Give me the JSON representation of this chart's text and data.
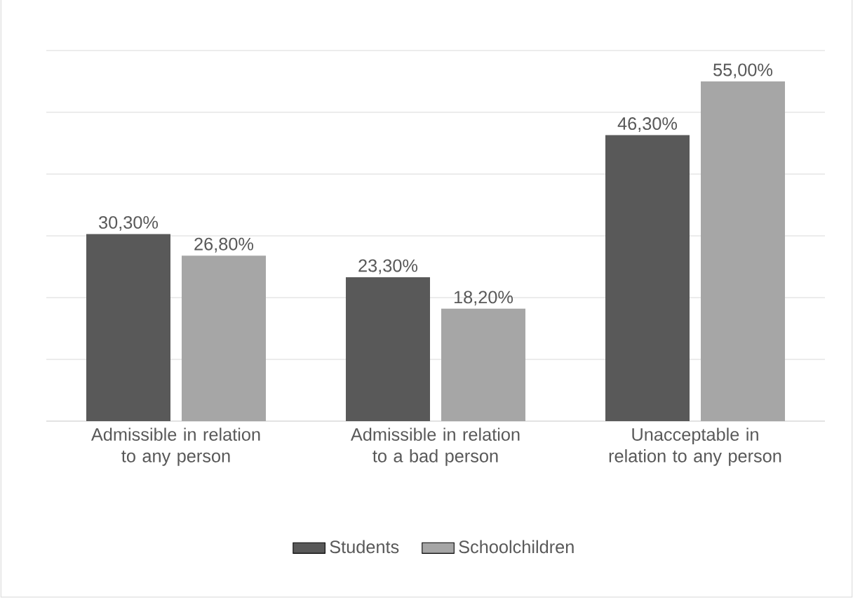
{
  "chart_data": {
    "type": "bar",
    "categories": [
      "Admissible in relation to any person",
      "Admissible in relation to a bad person",
      "Unacceptable in relation to any person"
    ],
    "series": [
      {
        "name": "Students",
        "color": "#595959",
        "values": [
          30.3,
          23.3,
          46.3
        ],
        "value_labels": [
          "30,30%",
          "23,30%",
          "46,30%"
        ]
      },
      {
        "name": "Schoolchildren",
        "color": "#a6a6a6",
        "values": [
          26.8,
          18.2,
          55.0
        ],
        "value_labels": [
          "26,80%",
          "18,20%",
          "55,00%"
        ]
      }
    ],
    "ylim": [
      0,
      60
    ],
    "tick_labels": "x",
    "grid": "y",
    "legend": "bottom"
  }
}
